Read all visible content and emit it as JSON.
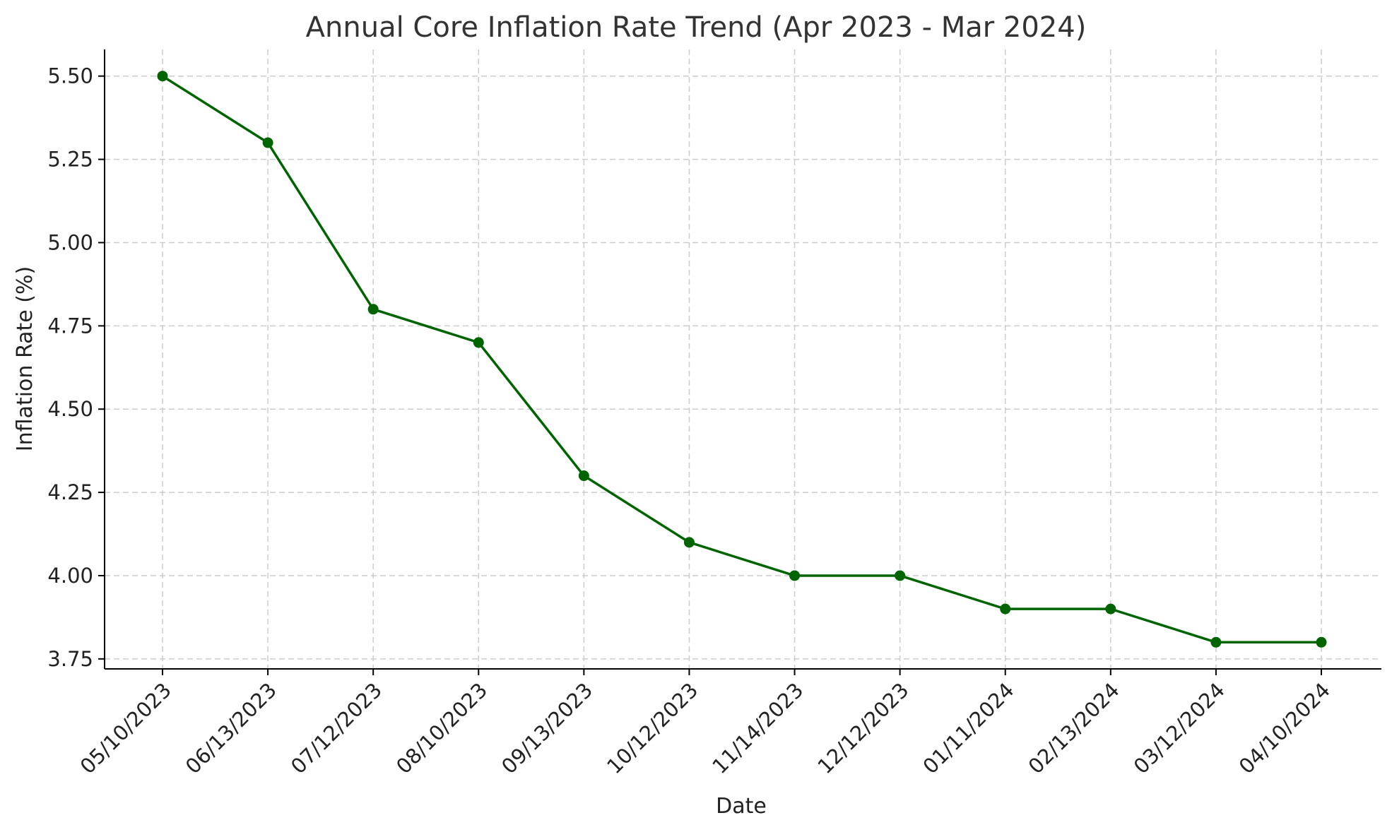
{
  "chart_data": {
    "type": "line",
    "title": "Annual Core Inflation Rate Trend (Apr 2023 - Mar 2024)",
    "xlabel": "Date",
    "ylabel": "Inflation Rate (%)",
    "categories": [
      "05/10/2023",
      "06/13/2023",
      "07/12/2023",
      "08/10/2023",
      "09/13/2023",
      "10/12/2023",
      "11/14/2023",
      "12/12/2023",
      "01/11/2024",
      "02/13/2024",
      "03/12/2024",
      "04/10/2024"
    ],
    "series": [
      {
        "values": [
          5.5,
          5.3,
          4.8,
          4.7,
          4.3,
          4.1,
          4.0,
          4.0,
          3.9,
          3.9,
          3.8,
          3.8
        ],
        "color": "#006400"
      }
    ],
    "ylim": [
      3.72,
      5.58
    ],
    "yticks": [
      "3.75",
      "4.00",
      "4.25",
      "4.50",
      "4.75",
      "5.00",
      "5.25",
      "5.50"
    ],
    "grid": true,
    "marker": "circle"
  }
}
